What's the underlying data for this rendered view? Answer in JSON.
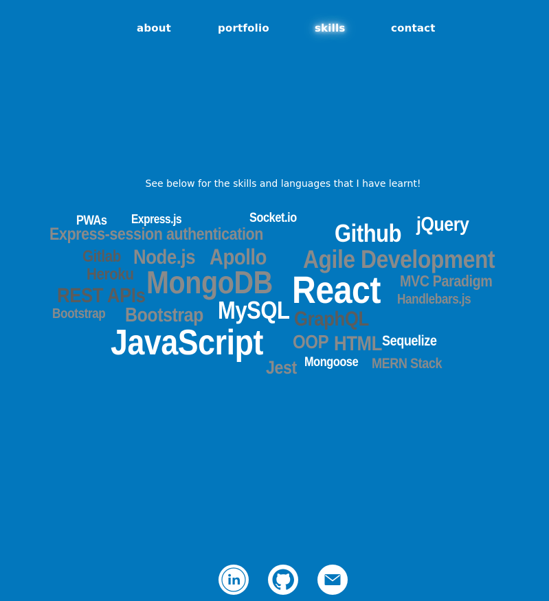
{
  "nav": {
    "items": [
      {
        "label": "about"
      },
      {
        "label": "portfolio"
      },
      {
        "label": "skills"
      },
      {
        "label": "contact"
      }
    ],
    "active": "skills"
  },
  "intro": {
    "text": "See below for the skills and languages that I have learnt!"
  },
  "colors": {
    "background": "#0277bd",
    "white": "#ffffff",
    "grey": "#8a8a8a",
    "dark": "#5c5c5c"
  },
  "skills": [
    {
      "label": "PWAs",
      "tone": "white"
    },
    {
      "label": "Express.js",
      "tone": "white"
    },
    {
      "label": "Socket.io",
      "tone": "white"
    },
    {
      "label": "jQuery",
      "tone": "white"
    },
    {
      "label": "Express-session authentication",
      "tone": "grey"
    },
    {
      "label": "Github",
      "tone": "white"
    },
    {
      "label": "Gitlab",
      "tone": "dark"
    },
    {
      "label": "Node.js",
      "tone": "grey"
    },
    {
      "label": "Apollo",
      "tone": "grey"
    },
    {
      "label": "Agile Development",
      "tone": "grey"
    },
    {
      "label": "Heroku",
      "tone": "dark"
    },
    {
      "label": "MongoDB",
      "tone": "grey"
    },
    {
      "label": "React",
      "tone": "white"
    },
    {
      "label": "MVC Paradigm",
      "tone": "grey"
    },
    {
      "label": "REST APIs",
      "tone": "dark"
    },
    {
      "label": "Handlebars.js",
      "tone": "grey"
    },
    {
      "label": "Bootstrap",
      "tone": "grey"
    },
    {
      "label": "Bootstrap",
      "tone": "grey"
    },
    {
      "label": "MySQL",
      "tone": "white"
    },
    {
      "label": "GraphQL",
      "tone": "dark"
    },
    {
      "label": "JavaScript",
      "tone": "white"
    },
    {
      "label": "OOP",
      "tone": "grey"
    },
    {
      "label": "HTML",
      "tone": "grey"
    },
    {
      "label": "Sequelize",
      "tone": "white"
    },
    {
      "label": "Mongoose",
      "tone": "white"
    },
    {
      "label": "MERN Stack",
      "tone": "grey"
    },
    {
      "label": "Jest",
      "tone": "grey"
    }
  ],
  "social": [
    {
      "icon": "linkedin-icon"
    },
    {
      "icon": "github-icon"
    },
    {
      "icon": "email-icon"
    }
  ]
}
